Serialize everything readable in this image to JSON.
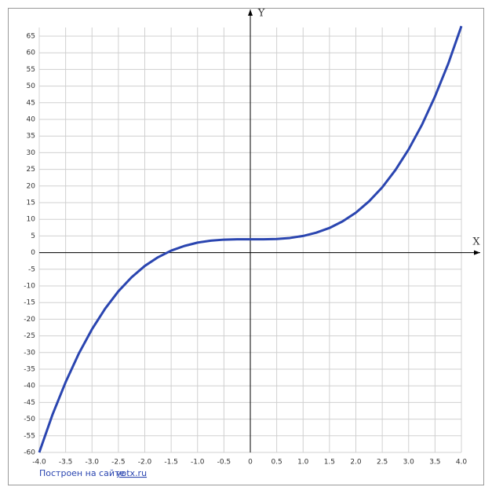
{
  "chart_data": {
    "type": "line",
    "x_label": "X",
    "y_label": "Y",
    "footer": "Построен на сайте",
    "footer_link": "yotx.ru",
    "x": [
      -4,
      -3.75,
      -3.5,
      -3.25,
      -3,
      -2.75,
      -2.5,
      -2.25,
      -2,
      -1.75,
      -1.5,
      -1.25,
      -1,
      -0.75,
      -0.5,
      -0.25,
      0,
      0.25,
      0.5,
      0.75,
      1,
      1.25,
      1.5,
      1.75,
      2,
      2.25,
      2.5,
      2.75,
      3,
      3.25,
      3.5,
      3.75,
      4
    ],
    "series": [
      {
        "color": "#2a45b0",
        "values": [
          -60,
          -48.7,
          -38.9,
          -30.3,
          -23,
          -16.8,
          -11.6,
          -7.4,
          -4,
          -1.4,
          0.6,
          2,
          3,
          3.6,
          3.9,
          4,
          4,
          4,
          4.1,
          4.4,
          5,
          6,
          7.4,
          9.4,
          12,
          15.4,
          19.6,
          24.8,
          31,
          38.3,
          46.9,
          56.7,
          68
        ]
      }
    ],
    "xlim": [
      -4,
      4
    ],
    "ylim": [
      -60,
      65
    ],
    "xticks": [
      {
        "value": -4,
        "label": "-4.0"
      },
      {
        "value": -3.5,
        "label": "-3.5"
      },
      {
        "value": -3,
        "label": "-3.0"
      },
      {
        "value": -2.5,
        "label": "-2.5"
      },
      {
        "value": -2,
        "label": "-2.0"
      },
      {
        "value": -1.5,
        "label": "-1.5"
      },
      {
        "value": -1,
        "label": "-1.0"
      },
      -0.5,
      0,
      0.5,
      {
        "value": 1,
        "label": "1.0"
      },
      1.5,
      {
        "value": 2,
        "label": "2.0"
      },
      2.5,
      {
        "value": 3,
        "label": "3.0"
      },
      3.5,
      {
        "value": 4,
        "label": "4.0"
      }
    ],
    "yticks": [
      -60,
      -55,
      -50,
      -45,
      -40,
      -35,
      -30,
      -25,
      -20,
      -15,
      -10,
      -5,
      0,
      5,
      10,
      15,
      20,
      25,
      30,
      35,
      40,
      45,
      50,
      55,
      60,
      65
    ],
    "grid": true
  }
}
